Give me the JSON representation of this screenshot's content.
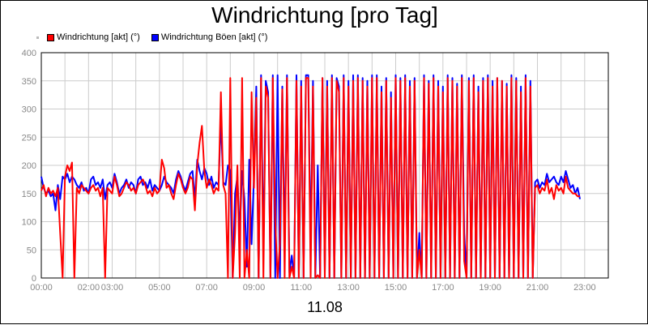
{
  "colors": {
    "red": "#ff0000",
    "blue": "#0000ff",
    "grid": "#cccccc"
  },
  "chart_data": {
    "type": "line",
    "title": "Windrichtung [pro Tag]",
    "xlabel": "11.08",
    "ylabel": "",
    "ylim": [
      0,
      400
    ],
    "yticks": [
      "0",
      "50",
      "100",
      "150",
      "200",
      "250",
      "300",
      "350",
      "400"
    ],
    "xlim_hours": [
      0,
      24
    ],
    "xtick_labels": [
      {
        "h": 0,
        "label": "00:00"
      },
      {
        "h": 2,
        "label": "02:00"
      },
      {
        "h": 3,
        "label": "03:00"
      },
      {
        "h": 5,
        "label": "05:00"
      },
      {
        "h": 7,
        "label": "07:00"
      },
      {
        "h": 9,
        "label": "09:00"
      },
      {
        "h": 11,
        "label": "11:00"
      },
      {
        "h": 13,
        "label": "13:00"
      },
      {
        "h": 15,
        "label": "15:00"
      },
      {
        "h": 17,
        "label": "17:00"
      },
      {
        "h": 19,
        "label": "19:00"
      },
      {
        "h": 21,
        "label": "21:00"
      },
      {
        "h": 23,
        "label": "23:00"
      }
    ],
    "grid": true,
    "legend_position": "top-left",
    "series": [
      {
        "name": "Windrichtung [akt] (°)",
        "color": "#ff0000",
        "x_start": 0,
        "x_step": 0.1,
        "values": [
          155,
          165,
          145,
          160,
          150,
          155,
          145,
          160,
          80,
          0,
          180,
          200,
          190,
          205,
          0,
          160,
          150,
          165,
          160,
          155,
          150,
          160,
          165,
          155,
          160,
          145,
          160,
          0,
          160,
          155,
          150,
          180,
          165,
          145,
          150,
          160,
          170,
          165,
          155,
          160,
          150,
          165,
          170,
          175,
          165,
          150,
          155,
          145,
          160,
          150,
          155,
          210,
          195,
          160,
          165,
          150,
          140,
          165,
          185,
          175,
          160,
          150,
          160,
          180,
          175,
          120,
          200,
          240,
          270,
          190,
          160,
          175,
          165,
          150,
          160,
          155,
          330,
          165,
          150,
          0,
          355,
          0,
          80,
          200,
          0,
          355,
          0,
          50,
          0,
          330,
          160,
          320,
          0,
          355,
          0,
          340,
          320,
          0,
          355,
          100,
          0,
          60,
          335,
          0,
          355,
          0,
          20,
          0,
          350,
          0,
          340,
          0,
          355,
          355,
          0,
          340,
          0,
          5,
          0,
          355,
          0,
          340,
          0,
          355,
          0,
          350,
          330,
          0,
          355,
          0,
          340,
          0,
          350,
          0,
          355,
          0,
          350,
          0,
          340,
          0,
          355,
          0,
          355,
          0,
          330,
          0,
          350,
          0,
          320,
          0,
          355,
          0,
          350,
          0,
          355,
          0,
          340,
          0,
          350,
          0,
          50,
          0,
          355,
          0,
          345,
          0,
          355,
          0,
          340,
          0,
          330,
          0,
          355,
          0,
          350,
          0,
          340,
          0,
          355,
          30,
          0,
          350,
          0,
          355,
          0,
          330,
          0,
          350,
          0,
          355,
          0,
          340,
          0,
          355,
          0,
          350,
          0,
          340,
          0,
          355,
          0,
          350,
          0,
          330,
          0,
          355,
          0,
          340,
          0,
          160,
          165,
          150,
          160,
          155,
          175,
          150,
          160,
          140,
          165,
          155,
          160,
          150,
          180,
          160,
          155,
          150,
          150,
          145,
          145
        ]
      },
      {
        "name": "Windrichtung Böen [akt] (°)",
        "color": "#0000ff",
        "x_start": 0,
        "x_step": 0.1,
        "values": [
          180,
          160,
          150,
          155,
          145,
          150,
          120,
          165,
          140,
          180,
          175,
          185,
          170,
          180,
          175,
          165,
          160,
          170,
          155,
          160,
          150,
          175,
          180,
          165,
          170,
          160,
          175,
          140,
          165,
          170,
          160,
          185,
          170,
          150,
          160,
          165,
          175,
          160,
          170,
          165,
          150,
          175,
          180,
          165,
          170,
          160,
          175,
          155,
          165,
          160,
          155,
          165,
          180,
          170,
          165,
          160,
          150,
          175,
          190,
          180,
          165,
          155,
          170,
          185,
          190,
          140,
          210,
          190,
          175,
          195,
          185,
          165,
          180,
          160,
          170,
          165,
          280,
          170,
          165,
          200,
          190,
          0,
          150,
          180,
          80,
          190,
          140,
          20,
          210,
          60,
          180,
          340,
          0,
          360,
          50,
          350,
          330,
          0,
          360,
          0,
          360,
          0,
          340,
          50,
          360,
          10,
          40,
          0,
          360,
          0,
          350,
          0,
          360,
          360,
          50,
          350,
          0,
          200,
          0,
          355,
          10,
          350,
          0,
          360,
          0,
          355,
          340,
          0,
          360,
          0,
          350,
          0,
          360,
          0,
          360,
          0,
          355,
          0,
          350,
          0,
          360,
          0,
          360,
          0,
          340,
          0,
          355,
          0,
          330,
          0,
          360,
          0,
          355,
          0,
          360,
          0,
          350,
          0,
          355,
          0,
          80,
          0,
          360,
          0,
          350,
          0,
          360,
          0,
          350,
          0,
          340,
          0,
          360,
          0,
          355,
          0,
          345,
          0,
          360,
          80,
          0,
          355,
          0,
          360,
          0,
          340,
          0,
          355,
          0,
          360,
          0,
          350,
          0,
          355,
          0,
          350,
          0,
          345,
          0,
          360,
          0,
          355,
          0,
          340,
          0,
          360,
          0,
          350,
          0,
          170,
          175,
          160,
          170,
          165,
          185,
          170,
          175,
          180,
          170,
          165,
          180,
          170,
          190,
          175,
          160,
          165,
          150,
          160,
          140
        ]
      }
    ]
  }
}
